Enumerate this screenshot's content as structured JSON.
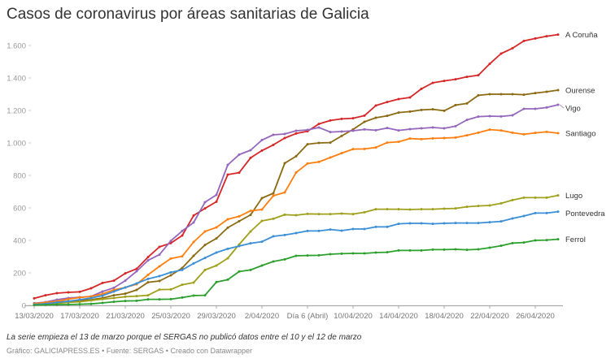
{
  "chart_data": {
    "type": "line",
    "title": "Casos de coronavirus por áreas sanitarias de Galicia",
    "note": "La serie empieza el 13 de marzo porque el SERGAS no publicó datos entre el 10 y el 12 de marzo",
    "credits": {
      "grafico": "Gráfico: GALICIAPRESS.ES",
      "fuente": "Fuente: SERGAS",
      "creado": "Creado con Datawrapper",
      "separator": "•"
    },
    "ylim": [
      0,
      1600
    ],
    "yticks": [
      0,
      200,
      400,
      600,
      800,
      1000,
      1200,
      1400,
      1600
    ],
    "ytick_labels": [
      "0",
      "200",
      "400",
      "600",
      "800",
      "1.000",
      "1.200",
      "1.400",
      "1.600"
    ],
    "xtick_labels": [
      "13/03/2020",
      "17/03/2020",
      "21/03/2020",
      "25/03/2020",
      "29/03/2020",
      "2/04/2020",
      "Día 6 (Abril)",
      "10/04/2020",
      "14/04/2020",
      "18/04/2020",
      "22/04/2020",
      "26/04/2020"
    ],
    "grid": false,
    "legend": "direct labels at line ends (right)",
    "x": [
      "13/03/2020",
      "14/03/2020",
      "15/03/2020",
      "16/03/2020",
      "17/03/2020",
      "18/03/2020",
      "19/03/2020",
      "20/03/2020",
      "21/03/2020",
      "22/03/2020",
      "23/03/2020",
      "24/03/2020",
      "25/03/2020",
      "26/03/2020",
      "27/03/2020",
      "28/03/2020",
      "29/03/2020",
      "30/03/2020",
      "31/03/2020",
      "01/04/2020",
      "02/04/2020",
      "03/04/2020",
      "04/04/2020",
      "05/04/2020",
      "06/04/2020",
      "07/04/2020",
      "08/04/2020",
      "09/04/2020",
      "10/04/2020",
      "11/04/2020",
      "12/04/2020",
      "13/04/2020",
      "14/04/2020",
      "15/04/2020",
      "16/04/2020",
      "17/04/2020",
      "18/04/2020",
      "19/04/2020",
      "20/04/2020",
      "21/04/2020",
      "22/04/2020",
      "23/04/2020",
      "24/04/2020",
      "25/04/2020",
      "26/04/2020",
      "27/04/2020",
      "28/04/2020"
    ],
    "series": [
      {
        "name": "A Coruña",
        "color": "#d62728",
        "values": [
          43,
          62,
          75,
          80,
          83,
          105,
          138,
          152,
          197,
          225,
          297,
          360,
          383,
          430,
          553,
          597,
          638,
          805,
          817,
          908,
          953,
          988,
          1030,
          1058,
          1072,
          1117,
          1138,
          1148,
          1152,
          1168,
          1230,
          1252,
          1270,
          1280,
          1333,
          1370,
          1382,
          1392,
          1407,
          1417,
          1487,
          1550,
          1583,
          1628,
          1643,
          1657,
          1667
        ]
      },
      {
        "name": "Ourense",
        "color": "#8c6a12",
        "values": [
          10,
          15,
          20,
          25,
          30,
          35,
          45,
          62,
          72,
          95,
          142,
          150,
          185,
          230,
          305,
          372,
          412,
          478,
          518,
          557,
          660,
          690,
          875,
          918,
          992,
          1000,
          1002,
          1043,
          1083,
          1130,
          1155,
          1167,
          1187,
          1193,
          1203,
          1207,
          1198,
          1233,
          1243,
          1293,
          1300,
          1300,
          1300,
          1297,
          1307,
          1315,
          1325
        ]
      },
      {
        "name": "Vigo",
        "color": "#9467bd",
        "values": [
          13,
          20,
          35,
          45,
          50,
          55,
          85,
          108,
          152,
          210,
          277,
          312,
          397,
          458,
          510,
          635,
          680,
          865,
          928,
          955,
          1018,
          1050,
          1055,
          1075,
          1080,
          1095,
          1067,
          1070,
          1075,
          1083,
          1078,
          1092,
          1077,
          1085,
          1090,
          1095,
          1090,
          1103,
          1142,
          1162,
          1165,
          1163,
          1170,
          1210,
          1210,
          1218,
          1235
        ]
      },
      {
        "name": "Santiago",
        "color": "#ff7f0e",
        "values": [
          10,
          18,
          25,
          38,
          48,
          55,
          70,
          95,
          110,
          130,
          188,
          240,
          288,
          302,
          390,
          455,
          480,
          530,
          548,
          582,
          590,
          675,
          695,
          818,
          873,
          883,
          910,
          937,
          962,
          963,
          972,
          1002,
          1007,
          1027,
          1023,
          1028,
          1030,
          1033,
          1047,
          1063,
          1082,
          1077,
          1063,
          1053,
          1062,
          1068,
          1060
        ]
      },
      {
        "name": "Lugo",
        "color": "#a0a01c",
        "values": [
          3,
          8,
          12,
          18,
          22,
          30,
          38,
          45,
          53,
          57,
          62,
          97,
          98,
          127,
          140,
          218,
          245,
          290,
          375,
          455,
          520,
          533,
          558,
          555,
          563,
          562,
          562,
          565,
          562,
          573,
          592,
          592,
          592,
          590,
          592,
          592,
          595,
          597,
          607,
          612,
          615,
          628,
          648,
          663,
          663,
          663,
          677
        ]
      },
      {
        "name": "Pontevedra",
        "color": "#3a8fd6",
        "values": [
          5,
          10,
          18,
          25,
          35,
          45,
          60,
          85,
          110,
          135,
          163,
          180,
          203,
          218,
          258,
          292,
          325,
          348,
          365,
          382,
          392,
          425,
          433,
          445,
          458,
          458,
          467,
          460,
          470,
          470,
          483,
          483,
          502,
          505,
          505,
          502,
          505,
          507,
          507,
          507,
          512,
          517,
          535,
          550,
          568,
          568,
          577
        ]
      },
      {
        "name": "Ferrol",
        "color": "#2ca02c",
        "values": [
          2,
          3,
          4,
          5,
          7,
          9,
          15,
          22,
          27,
          28,
          37,
          37,
          38,
          48,
          60,
          62,
          143,
          158,
          208,
          218,
          245,
          270,
          283,
          305,
          307,
          308,
          315,
          318,
          320,
          320,
          325,
          327,
          338,
          338,
          338,
          343,
          343,
          345,
          342,
          345,
          355,
          367,
          383,
          387,
          400,
          402,
          407
        ]
      }
    ]
  }
}
